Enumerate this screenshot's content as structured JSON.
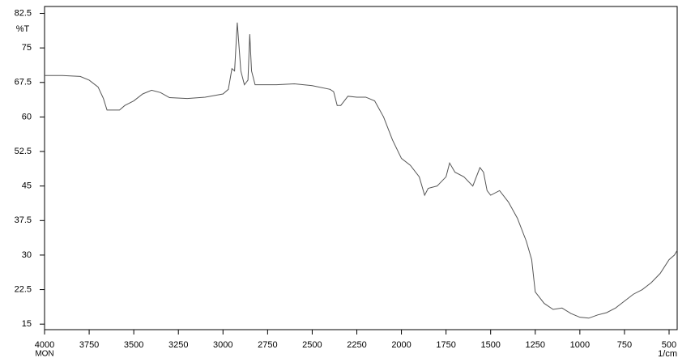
{
  "chart_data": {
    "type": "line",
    "y_label": "%T",
    "x_note": "MON",
    "x_label": "1/cm",
    "x": [
      4000,
      3900,
      3800,
      3750,
      3700,
      3670,
      3650,
      3620,
      3580,
      3550,
      3500,
      3450,
      3400,
      3350,
      3300,
      3200,
      3100,
      3000,
      2970,
      2950,
      2935,
      2920,
      2900,
      2880,
      2860,
      2850,
      2840,
      2820,
      2700,
      2600,
      2500,
      2400,
      2380,
      2360,
      2340,
      2320,
      2300,
      2250,
      2200,
      2150,
      2100,
      2050,
      2000,
      1950,
      1900,
      1870,
      1850,
      1800,
      1750,
      1730,
      1700,
      1650,
      1600,
      1560,
      1540,
      1520,
      1500,
      1450,
      1400,
      1350,
      1300,
      1270,
      1250,
      1200,
      1150,
      1100,
      1050,
      1000,
      950,
      900,
      850,
      800,
      750,
      700,
      650,
      600,
      550,
      500,
      470,
      455
    ],
    "values": [
      69,
      69,
      68.8,
      68,
      66.5,
      64,
      61.5,
      61.5,
      61.5,
      62.5,
      63.5,
      65,
      65.8,
      65.3,
      64.2,
      64,
      64.3,
      65,
      66,
      70.5,
      70,
      80.5,
      70,
      67,
      68,
      78,
      70,
      67,
      67,
      67.2,
      66.8,
      66,
      65.5,
      62.5,
      62.5,
      63.5,
      64.5,
      64.3,
      64.3,
      63.5,
      60,
      55,
      51,
      49.5,
      47,
      43,
      44.5,
      45,
      47,
      50,
      48,
      47,
      45,
      49,
      48,
      44,
      43,
      44,
      41.5,
      38,
      33,
      29,
      22,
      19.5,
      18.2,
      18.5,
      17.3,
      16.5,
      16.3,
      17,
      17.5,
      18.5,
      20,
      21.5,
      22.5,
      24,
      26,
      29,
      30,
      31
    ],
    "color": "#555555",
    "xlim": [
      4000,
      450
    ],
    "xticks": [
      4000,
      3750,
      3500,
      3250,
      3000,
      2750,
      2500,
      2250,
      2000,
      1750,
      1500,
      1250,
      1000,
      750,
      500
    ],
    "ylim": [
      13.8,
      84
    ],
    "yticks": [
      15,
      22.5,
      30,
      37.5,
      45,
      52.5,
      60,
      67.5,
      75,
      82.5
    ]
  }
}
